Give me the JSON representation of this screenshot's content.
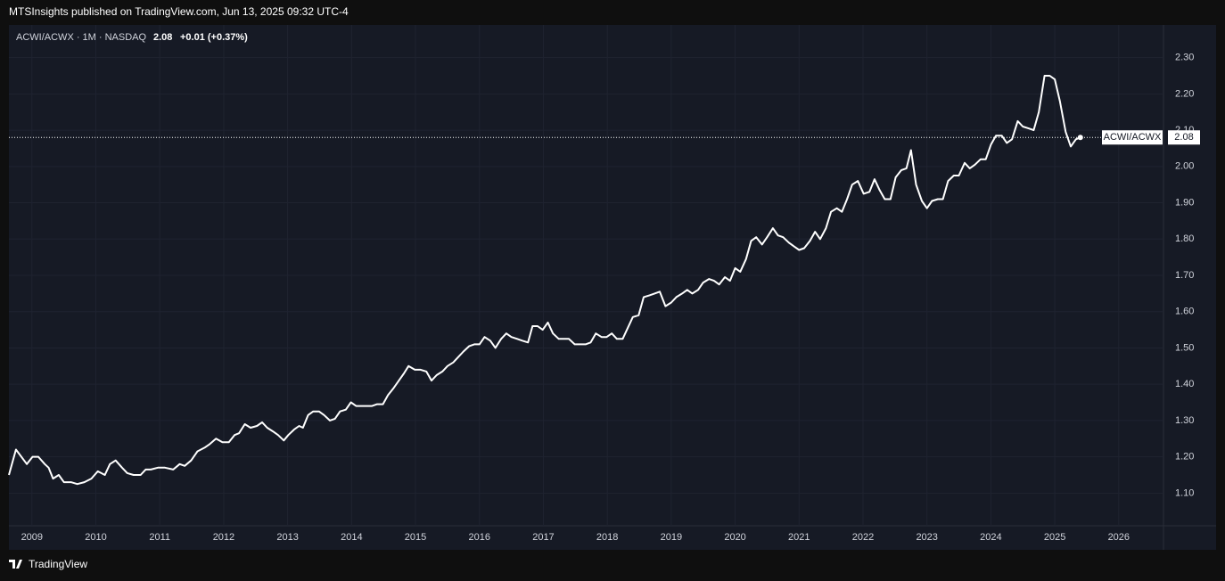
{
  "header": {
    "publisher": "MTSInsights published on TradingView.com, Jun 13, 2025 09:32 UTC-4"
  },
  "footer": {
    "brand": "TradingView"
  },
  "chart_data": {
    "type": "line",
    "symbol": "ACWI/ACWX · 1M · NASDAQ",
    "last_price": 2.08,
    "change": "+0.01 (+0.37%)",
    "xlim": [
      2008.64,
      2026.7
    ],
    "xticks": [
      2009,
      2010,
      2011,
      2012,
      2013,
      2014,
      2015,
      2016,
      2017,
      2018,
      2019,
      2020,
      2021,
      2022,
      2023,
      2024,
      2025,
      2026
    ],
    "ylim": [
      1.01,
      2.39
    ],
    "yticks": [
      {
        "value": 1.1,
        "label": "1.10"
      },
      {
        "value": 1.2,
        "label": "1.20"
      },
      {
        "value": 1.3,
        "label": "1.30"
      },
      {
        "value": 1.4,
        "label": "1.40"
      },
      {
        "value": 1.5,
        "label": "1.50"
      },
      {
        "value": 1.6,
        "label": "1.60"
      },
      {
        "value": 1.7,
        "label": "1.70"
      },
      {
        "value": 1.8,
        "label": "1.80"
      },
      {
        "value": 1.9,
        "label": "1.90"
      },
      {
        "value": 2.0,
        "label": "2.00"
      },
      {
        "value": 2.1,
        "label": "2.10"
      },
      {
        "value": 2.2,
        "label": "2.20"
      },
      {
        "value": 2.3,
        "label": "2.30"
      }
    ],
    "grid": true,
    "x": [
      2008.64,
      2008.75,
      2008.92,
      2009.01,
      2009.1,
      2009.2,
      2009.26,
      2009.33,
      2009.42,
      2009.5,
      2009.61,
      2009.71,
      2009.82,
      2009.93,
      2010.03,
      2010.14,
      2010.22,
      2010.31,
      2010.41,
      2010.49,
      2010.59,
      2010.7,
      2010.78,
      2010.86,
      2010.97,
      2011.08,
      2011.21,
      2011.31,
      2011.39,
      2011.49,
      2011.59,
      2011.7,
      2011.78,
      2011.88,
      2011.98,
      2012.08,
      2012.17,
      2012.24,
      2012.33,
      2012.42,
      2012.52,
      2012.6,
      2012.68,
      2012.77,
      2012.85,
      2012.94,
      2013.01,
      2013.1,
      2013.18,
      2013.24,
      2013.32,
      2013.4,
      2013.49,
      2013.57,
      2013.66,
      2013.74,
      2013.82,
      2013.91,
      2013.99,
      2014.07,
      2014.15,
      2014.24,
      2014.32,
      2014.4,
      2014.49,
      2014.57,
      2014.66,
      2014.74,
      2014.82,
      2014.89,
      2014.99,
      2015.08,
      2015.17,
      2015.25,
      2015.33,
      2015.42,
      2015.5,
      2015.59,
      2015.67,
      2015.75,
      2015.84,
      2015.92,
      2016.0,
      2016.08,
      2016.17,
      2016.25,
      2016.34,
      2016.42,
      2016.5,
      2016.59,
      2016.67,
      2016.76,
      2016.83,
      2016.91,
      2016.99,
      2017.07,
      2017.15,
      2017.24,
      2017.32,
      2017.4,
      2017.49,
      2017.57,
      2017.66,
      2017.74,
      2017.82,
      2017.91,
      2017.99,
      2018.07,
      2018.15,
      2018.24,
      2018.32,
      2018.4,
      2018.49,
      2018.57,
      2018.66,
      2018.74,
      2018.82,
      2018.91,
      2019.0,
      2019.08,
      2019.17,
      2019.25,
      2019.33,
      2019.42,
      2019.5,
      2019.59,
      2019.67,
      2019.75,
      2019.84,
      2019.92,
      2020.0,
      2020.08,
      2020.17,
      2020.25,
      2020.33,
      2020.42,
      2020.5,
      2020.59,
      2020.67,
      2020.75,
      2020.84,
      2020.92,
      2021.0,
      2021.08,
      2021.17,
      2021.25,
      2021.33,
      2021.42,
      2021.5,
      2021.59,
      2021.67,
      2021.75,
      2021.83,
      2021.92,
      2022.01,
      2022.1,
      2022.18,
      2022.26,
      2022.34,
      2022.43,
      2022.51,
      2022.6,
      2022.68,
      2022.75,
      2022.83,
      2022.92,
      2023.0,
      2023.08,
      2023.17,
      2023.25,
      2023.33,
      2023.42,
      2023.5,
      2023.59,
      2023.67,
      2023.75,
      2023.84,
      2023.92,
      2024.0,
      2024.08,
      2024.17,
      2024.25,
      2024.33,
      2024.42,
      2024.5,
      2024.59,
      2024.67,
      2024.75,
      2024.84,
      2024.92,
      2025.0,
      2025.08,
      2025.17,
      2025.25,
      2025.33,
      2025.4
    ],
    "series": [
      {
        "name": "ACWI/ACWX",
        "color": "#ffffff",
        "values": [
          1.15,
          1.22,
          1.18,
          1.2,
          1.2,
          1.18,
          1.17,
          1.14,
          1.15,
          1.13,
          1.13,
          1.125,
          1.13,
          1.14,
          1.16,
          1.15,
          1.18,
          1.19,
          1.17,
          1.155,
          1.15,
          1.15,
          1.165,
          1.165,
          1.17,
          1.17,
          1.165,
          1.18,
          1.175,
          1.19,
          1.215,
          1.225,
          1.235,
          1.25,
          1.24,
          1.24,
          1.26,
          1.265,
          1.29,
          1.28,
          1.285,
          1.295,
          1.28,
          1.27,
          1.26,
          1.245,
          1.26,
          1.275,
          1.285,
          1.28,
          1.315,
          1.325,
          1.325,
          1.315,
          1.3,
          1.305,
          1.325,
          1.33,
          1.35,
          1.34,
          1.34,
          1.34,
          1.34,
          1.345,
          1.345,
          1.37,
          1.39,
          1.41,
          1.43,
          1.45,
          1.44,
          1.44,
          1.435,
          1.41,
          1.425,
          1.435,
          1.45,
          1.46,
          1.475,
          1.49,
          1.505,
          1.51,
          1.51,
          1.53,
          1.52,
          1.5,
          1.525,
          1.54,
          1.53,
          1.525,
          1.52,
          1.515,
          1.56,
          1.56,
          1.55,
          1.57,
          1.54,
          1.525,
          1.525,
          1.525,
          1.51,
          1.51,
          1.51,
          1.515,
          1.54,
          1.53,
          1.53,
          1.54,
          1.525,
          1.525,
          1.555,
          1.585,
          1.59,
          1.64,
          1.645,
          1.65,
          1.655,
          1.615,
          1.625,
          1.64,
          1.65,
          1.66,
          1.65,
          1.66,
          1.68,
          1.69,
          1.685,
          1.675,
          1.695,
          1.685,
          1.72,
          1.71,
          1.745,
          1.795,
          1.805,
          1.785,
          1.805,
          1.83,
          1.81,
          1.805,
          1.79,
          1.78,
          1.77,
          1.775,
          1.795,
          1.82,
          1.8,
          1.83,
          1.875,
          1.885,
          1.875,
          1.91,
          1.95,
          1.96,
          1.925,
          1.93,
          1.965,
          1.935,
          1.91,
          1.91,
          1.97,
          1.99,
          1.995,
          2.045,
          1.95,
          1.905,
          1.885,
          1.905,
          1.91,
          1.91,
          1.96,
          1.975,
          1.975,
          2.01,
          1.995,
          2.005,
          2.02,
          2.02,
          2.06,
          2.085,
          2.085,
          2.065,
          2.075,
          2.125,
          2.11,
          2.105,
          2.1,
          2.15,
          2.25,
          2.25,
          2.24,
          2.18,
          2.095,
          2.055,
          2.075,
          2.08
        ]
      }
    ]
  }
}
